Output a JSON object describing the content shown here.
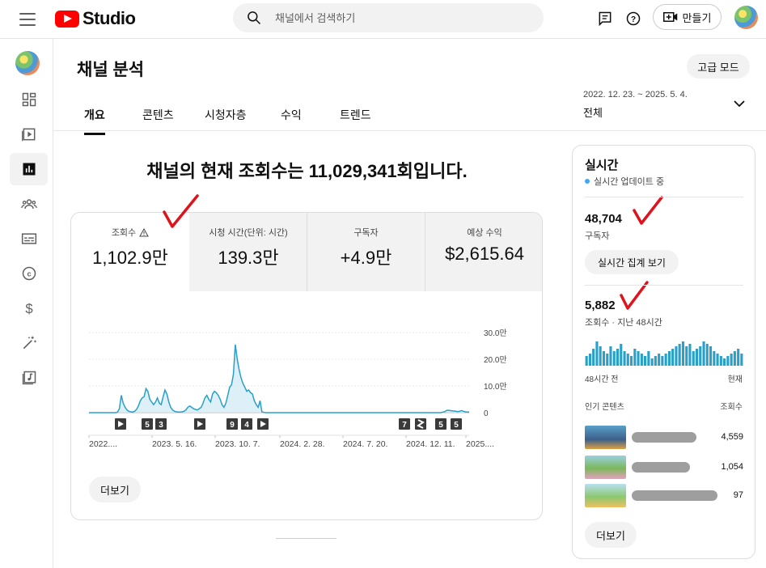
{
  "app": {
    "logo_text": "Studio"
  },
  "search": {
    "placeholder": "채널에서 검색하기"
  },
  "header": {
    "create_label": "만들기"
  },
  "page": {
    "title": "채널 분석",
    "advanced_label": "고급 모드"
  },
  "tabs": [
    {
      "label": "개요",
      "active": true
    },
    {
      "label": "콘텐츠"
    },
    {
      "label": "시청자층"
    },
    {
      "label": "수익"
    },
    {
      "label": "트렌드"
    }
  ],
  "date_range": {
    "dates": "2022. 12. 23. ~ 2025. 5. 4.",
    "label": "전체"
  },
  "headline": "채널의 현재 조회수는 11,029,341회입니다.",
  "metrics": [
    {
      "label": "조회수",
      "value": "1,102.9만",
      "active": true,
      "icon": "warning-icon"
    },
    {
      "label": "시청 시간(단위: 시간)",
      "value": "139.3만"
    },
    {
      "label": "구독자",
      "value": "+4.9만"
    },
    {
      "label": "예상 수익",
      "value": "$2,615.64"
    }
  ],
  "main_more_label": "더보기",
  "chart_data": {
    "type": "line",
    "series": [
      {
        "values": [
          0,
          0,
          0,
          0,
          0,
          0,
          0,
          0,
          0,
          0,
          0,
          0,
          0,
          0,
          0,
          0.2,
          1.5,
          6.5,
          3.5,
          2.0,
          1.0,
          0.5,
          0.3,
          0.2,
          0.5,
          1.2,
          2.5,
          4.5,
          5.5,
          6.0,
          9.0,
          8.0,
          5.0,
          4.0,
          3.0,
          4.0,
          5.5,
          3.5,
          3.0,
          6.0,
          8.5,
          7.0,
          4.0,
          2.0,
          1.0,
          0.5,
          0.3,
          0.2,
          0.2,
          0.3,
          0.5,
          1.0,
          2.0,
          2.5,
          2.0,
          1.5,
          1.2,
          1.0,
          1.5,
          2.0,
          3.5,
          5.5,
          6.5,
          5.0,
          4.0,
          7.0,
          8.0,
          7.5,
          6.5,
          5.0,
          3.0,
          2.0,
          3.5,
          6.5,
          9.5,
          10.5,
          14.5,
          25.5,
          20.0,
          16.0,
          13.0,
          11.0,
          9.5,
          8.0,
          8.5,
          7.5,
          7.0,
          4.5,
          3.0,
          2.0,
          4.5,
          0.3,
          0.1,
          0,
          0,
          0,
          0,
          0,
          0,
          0,
          0,
          0,
          0,
          0,
          0,
          0,
          0,
          0,
          0,
          0,
          0,
          0,
          0,
          0,
          0,
          0,
          0,
          0,
          0,
          0,
          0,
          0,
          0,
          0,
          0,
          0,
          0,
          0,
          0,
          0,
          0,
          0,
          0,
          0,
          0,
          0,
          0,
          0,
          0,
          0,
          0,
          0,
          0,
          0,
          0,
          0,
          0,
          0,
          0,
          0,
          0,
          0,
          0,
          0,
          0,
          0,
          0,
          0,
          0,
          0,
          0,
          0,
          0,
          0,
          0,
          0,
          0,
          0,
          0,
          0,
          0,
          0,
          0,
          0,
          0,
          0,
          0,
          0,
          0,
          0,
          0,
          0,
          0,
          0,
          0,
          0,
          0.2,
          0.3,
          0.8,
          0.9,
          0.8,
          0.7,
          0.6,
          0.5,
          0.4,
          0.5,
          0.8,
          0.5,
          0.3,
          0.2,
          0.2
        ]
      }
    ],
    "yticks": [
      "30.0만",
      "20.0만",
      "10.0만",
      "0"
    ],
    "ylim": [
      0,
      30
    ],
    "xticks": [
      "2022....",
      "2023. 5. 16.",
      "2023. 10. 7.",
      "2024. 2. 28.",
      "2024. 7. 20.",
      "2024. 12. 11.",
      "2025...."
    ],
    "markers": [
      {
        "type": "play-icon"
      },
      {
        "type": "num",
        "text": "5"
      },
      {
        "type": "num",
        "text": "3"
      },
      {
        "type": "play-icon"
      },
      {
        "type": "num",
        "text": "9"
      },
      {
        "type": "num",
        "text": "4"
      },
      {
        "type": "play-icon"
      },
      {
        "type": "num",
        "text": "7"
      },
      {
        "type": "shorts-icon"
      },
      {
        "type": "num",
        "text": "5"
      },
      {
        "type": "num",
        "text": "5"
      }
    ],
    "grid": true,
    "colors": {
      "line": "#28a0c8",
      "fill": "#cfeaf5"
    }
  },
  "realtime": {
    "title": "실시간",
    "live_label": "실시간 업데이트 중",
    "subscribers": "48,704",
    "subscribers_label": "구독자",
    "view_count_button": "실시간 집계 보기",
    "views": "5,882",
    "views_label": "조회수 · 지난 48시간",
    "bars": [
      4,
      5,
      7,
      10,
      8,
      6,
      5,
      8,
      6,
      7,
      9,
      6,
      5,
      4,
      7,
      6,
      5,
      4,
      6,
      3,
      4,
      5,
      4,
      5,
      6,
      7,
      8,
      9,
      10,
      8,
      9,
      6,
      7,
      8,
      10,
      9,
      8,
      6,
      5,
      4,
      3,
      4,
      5,
      6,
      7,
      5
    ],
    "left_axis": "48시간 전",
    "right_axis": "현재",
    "top_content_label": "인기 콘텐츠",
    "top_content_metric": "조회수",
    "top_content": [
      {
        "views": "4,559"
      },
      {
        "views": "1,054"
      },
      {
        "views": "97"
      }
    ],
    "more_label": "더보기"
  },
  "colors": {
    "brand_red": "#ff0000",
    "accent_blue": "#3ea6ff",
    "annotation_red": "#e0131c"
  }
}
